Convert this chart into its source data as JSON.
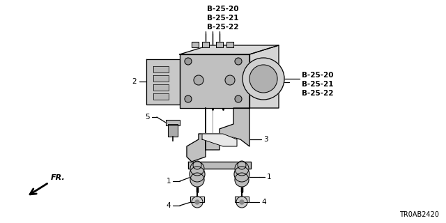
{
  "bg_color": "#ffffff",
  "lc": "#000000",
  "fc_light": "#cccccc",
  "fc_mid": "#aaaaaa",
  "fc_dark": "#888888",
  "labels": {
    "top_ref": "B-25-20\nB-25-21\nB-25-22",
    "right_ref": "B-25-20\nB-25-21\nB-25-22",
    "label_2": "2",
    "label_3": "3",
    "label_4_left": "4",
    "label_4_right": "4",
    "label_1_left": "1",
    "label_1_right": "1",
    "label_5": "5",
    "fr_label": "FR.",
    "diagram_id": "TR0AB2420"
  },
  "figsize": [
    6.4,
    3.2
  ],
  "dpi": 100
}
